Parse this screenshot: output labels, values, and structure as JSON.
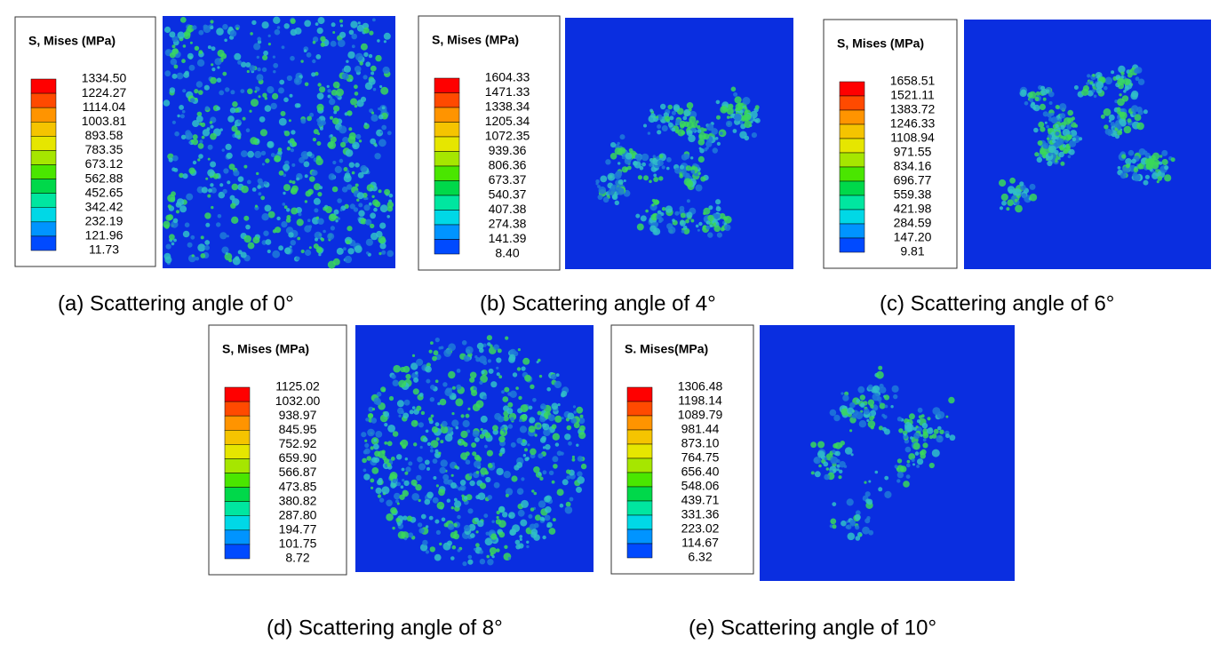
{
  "panels": [
    {
      "legend_title": "S, Mises (MPa)",
      "levels": [
        "1334.50",
        "1224.27",
        "1114.04",
        "1003.81",
        "893.58",
        "783.35",
        "673.12",
        "562.88",
        "452.65",
        "342.42",
        "232.19",
        "121.96",
        "11.73"
      ],
      "caption": "(a)  Scattering angle of 0°"
    },
    {
      "legend_title": "S, Mises (MPa)",
      "levels": [
        "1604.33",
        "1471.33",
        "1338.34",
        "1205.34",
        "1072.35",
        "939.36",
        "806.36",
        "673.37",
        "540.37",
        "407.38",
        "274.38",
        "141.39",
        "8.40"
      ],
      "caption": "(b) Scattering angle of 4°"
    },
    {
      "legend_title": "S, Mises (MPa)",
      "levels": [
        "1658.51",
        "1521.11",
        "1383.72",
        "1246.33",
        "1108.94",
        "971.55",
        "834.16",
        "696.77",
        "559.38",
        "421.98",
        "284.59",
        "147.20",
        "9.81"
      ],
      "caption": "(c) Scattering angle of 6°"
    },
    {
      "legend_title": "S, Mises (MPa)",
      "levels": [
        "1125.02",
        "1032.00",
        "938.97",
        "845.95",
        "752.92",
        "659.90",
        "566.87",
        "473.85",
        "380.82",
        "287.80",
        "194.77",
        "101.75",
        "8.72"
      ],
      "caption": "(d) Scattering angle of 8°"
    },
    {
      "legend_title": "S. Mises(MPa)",
      "levels": [
        "1306.48",
        "1198.14",
        "1089.79",
        "981.44",
        "873.10",
        "764.75",
        "656.40",
        "548.06",
        "439.71",
        "331.36",
        "223.02",
        "114.67",
        "6.32"
      ],
      "caption": "(e) Scattering angle of 10°"
    }
  ]
}
